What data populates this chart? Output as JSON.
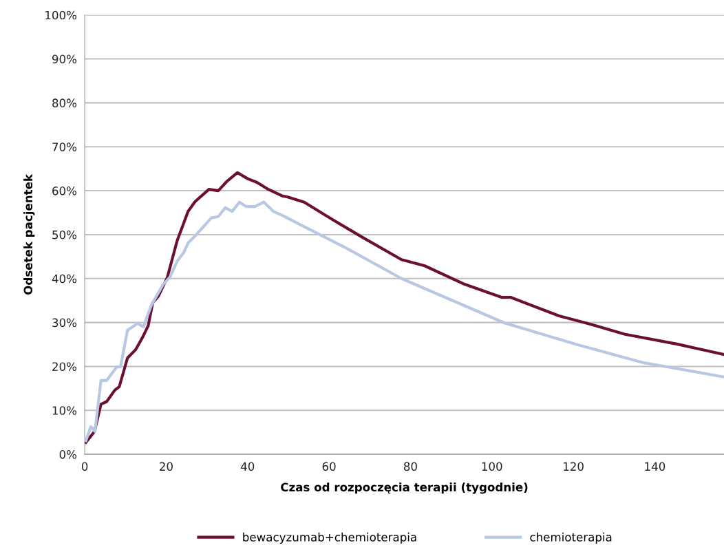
{
  "chart_data": {
    "type": "line",
    "xlabel": "Czas od rozpoczęcia terapii (tygodnie)",
    "ylabel": "Odsetek pacjentek",
    "xlim": [
      0,
      157
    ],
    "xticks": [
      0,
      20,
      40,
      60,
      80,
      100,
      120,
      140
    ],
    "ylim": [
      0,
      100
    ],
    "yticks": [
      {
        "value": 0,
        "label": "0%"
      },
      {
        "value": 10,
        "label": "10%"
      },
      {
        "value": 20,
        "label": "20%"
      },
      {
        "value": 30,
        "label": "30%"
      },
      {
        "value": 40,
        "label": "40%"
      },
      {
        "value": 50,
        "label": "50%"
      },
      {
        "value": 60,
        "label": "60%"
      },
      {
        "value": 70,
        "label": "70%"
      },
      {
        "value": 80,
        "label": "80%"
      },
      {
        "value": 90,
        "label": "90%"
      },
      {
        "value": 100,
        "label": "100%"
      }
    ],
    "grid": "y",
    "legend": "bottom",
    "marker": "none",
    "line_style": "solid",
    "series": [
      {
        "name": "bewacyzumab+chemioterapia",
        "color": "#6b0f35",
        "x": [
          0.3,
          2.4,
          4,
          5.4,
          7.4,
          8.5,
          10.5,
          12.5,
          14.2,
          15.6,
          16.7,
          18.1,
          20.3,
          22.7,
          25.4,
          27.1,
          30.5,
          32.8,
          35,
          37.5,
          40.1,
          42.3,
          45.1,
          48.5,
          49.7,
          53.9,
          60.9,
          68,
          77.8,
          83.5,
          93.3,
          102.5,
          104.7,
          116.5,
          124.3,
          132.7,
          145.4,
          157
        ],
        "values": [
          2.7,
          5.2,
          11.4,
          12,
          14.6,
          15.4,
          21.9,
          23.8,
          26.6,
          29.3,
          34.5,
          36,
          40.3,
          48.6,
          55.3,
          57.5,
          60.3,
          60,
          62.2,
          64.1,
          62.7,
          61.9,
          60.3,
          58.8,
          58.6,
          57.4,
          53.4,
          49.5,
          44.3,
          42.9,
          38.7,
          35.7,
          35.7,
          31.5,
          29.6,
          27.3,
          25.1,
          22.7
        ]
      },
      {
        "name": "chemioterapia",
        "color": "#b8c8e4",
        "x": [
          0.3,
          1.5,
          2.5,
          4,
          5.4,
          7.9,
          8.8,
          10.5,
          13,
          14.4,
          16.4,
          19.3,
          20.9,
          22.7,
          24.3,
          25.4,
          27.1,
          31.1,
          32.8,
          34.5,
          36.2,
          38,
          39.6,
          41.8,
          44,
          46.3,
          48.5,
          53.9,
          63.7,
          77.8,
          103.1,
          120.8,
          137,
          157
        ],
        "values": [
          3.1,
          6.3,
          5.2,
          16.8,
          16.8,
          19.9,
          19.9,
          28.2,
          29.8,
          29,
          34,
          38.7,
          40.3,
          43.9,
          45.9,
          48.1,
          49.7,
          53.8,
          54.1,
          56.1,
          55.3,
          57.4,
          56.4,
          56.4,
          57.4,
          55.3,
          54.4,
          51.8,
          47.2,
          40,
          29.9,
          25,
          20.9,
          17.6
        ]
      }
    ]
  }
}
